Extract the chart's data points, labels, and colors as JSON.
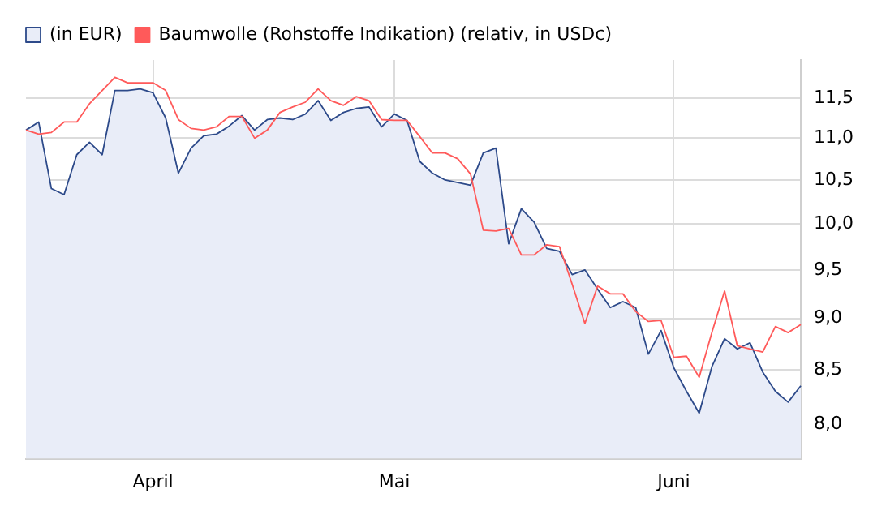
{
  "chart_data": {
    "type": "area",
    "categories": [
      null,
      null,
      null,
      null,
      null,
      null,
      null,
      null,
      null,
      null,
      "April",
      null,
      null,
      null,
      null,
      null,
      null,
      null,
      null,
      null,
      null,
      null,
      null,
      null,
      null,
      null,
      null,
      null,
      null,
      "Mai",
      null,
      null,
      null,
      null,
      null,
      null,
      null,
      null,
      null,
      null,
      null,
      null,
      null,
      null,
      null,
      null,
      null,
      null,
      null,
      null,
      null,
      "Juni",
      null,
      null,
      null,
      null,
      null,
      null,
      null,
      null,
      null,
      null
    ],
    "series": [
      {
        "name": "(in EUR)",
        "type": "area",
        "color": "#2d4a8a",
        "values": [
          11.1,
          11.2,
          10.4,
          10.33,
          10.8,
          10.95,
          10.8,
          11.6,
          11.6,
          11.62,
          11.57,
          11.25,
          10.58,
          10.88,
          11.03,
          11.05,
          11.15,
          11.28,
          11.1,
          11.23,
          11.25,
          11.23,
          11.3,
          11.47,
          11.22,
          11.32,
          11.37,
          11.39,
          11.14,
          11.3,
          11.22,
          10.72,
          10.58,
          10.5,
          10.47,
          10.44,
          10.82,
          10.88,
          9.78,
          10.17,
          10.02,
          9.73,
          9.7,
          9.45,
          9.5,
          9.3,
          9.11,
          9.17,
          9.11,
          8.65,
          8.88,
          8.52,
          8.3,
          8.1,
          8.53,
          8.8,
          8.7,
          8.76,
          8.48,
          8.3,
          8.2,
          8.35
        ]
      },
      {
        "name": "Baumwolle (Rohstoffe Indikation) (relativ, in USDc)",
        "type": "line",
        "color": "#ff5a5a",
        "values": [
          11.1,
          11.05,
          11.07,
          11.2,
          11.2,
          11.43,
          11.6,
          11.77,
          11.7,
          11.7,
          11.7,
          11.6,
          11.23,
          11.12,
          11.1,
          11.14,
          11.27,
          11.27,
          11.0,
          11.1,
          11.32,
          11.39,
          11.45,
          11.62,
          11.47,
          11.41,
          11.52,
          11.47,
          11.23,
          11.22,
          11.22,
          11.02,
          10.82,
          10.82,
          10.75,
          10.57,
          9.93,
          9.92,
          9.95,
          9.66,
          9.66,
          9.77,
          9.75,
          9.35,
          8.95,
          9.33,
          9.25,
          9.25,
          9.07,
          8.97,
          8.98,
          8.62,
          8.63,
          8.43,
          8.86,
          9.28,
          8.73,
          8.7,
          8.67,
          8.92,
          8.86,
          8.94
        ]
      }
    ],
    "ylim": [
      7.74,
      12.0
    ],
    "yticks": [
      {
        "value": 8,
        "label": "8,0"
      },
      {
        "value": 8.5,
        "label": "8,5"
      },
      {
        "value": 9,
        "label": "9,0"
      },
      {
        "value": 9.5,
        "label": "9,5"
      },
      {
        "value": 10,
        "label": "10,0"
      },
      {
        "value": 10.5,
        "label": "10,5"
      },
      {
        "value": 11,
        "label": "11,0"
      },
      {
        "value": 11.5,
        "label": "11,5"
      }
    ],
    "log": "y",
    "grid": true,
    "legend": "top left"
  }
}
